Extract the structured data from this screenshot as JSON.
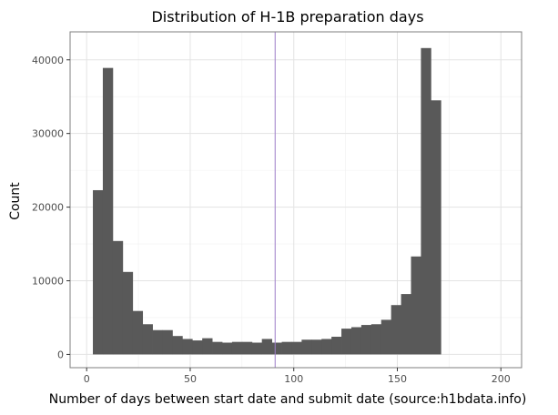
{
  "chart_data": {
    "type": "bar",
    "title": "Distribution of H-1B preparation days",
    "xlabel": "Number of days between start date and submit date (source:h1bdata.info)",
    "ylabel": "Count",
    "xlim": [
      -8,
      210
    ],
    "ylim": [
      -1800,
      43800
    ],
    "x_ticks": [
      0,
      50,
      100,
      150,
      200
    ],
    "y_ticks": [
      0,
      10000,
      20000,
      30000,
      40000
    ],
    "x_tick_labels": [
      "0",
      "50",
      "100",
      "150",
      "200"
    ],
    "y_tick_labels": [
      "0",
      "10000",
      "20000",
      "30000",
      "40000"
    ],
    "bin_width": 4.8,
    "bin_start": 3,
    "values": [
      22300,
      38900,
      15400,
      11200,
      5900,
      4100,
      3300,
      3300,
      2500,
      2100,
      1900,
      2200,
      1700,
      1600,
      1700,
      1700,
      1600,
      2100,
      1600,
      1700,
      1700,
      2000,
      2000,
      2100,
      2400,
      3500,
      3700,
      4000,
      4100,
      4700,
      6700,
      8200,
      13300,
      41600,
      34500
    ],
    "vline_x": 91,
    "bar_color": "#595959",
    "vline_color": "#9e7dc9",
    "grid": true
  }
}
